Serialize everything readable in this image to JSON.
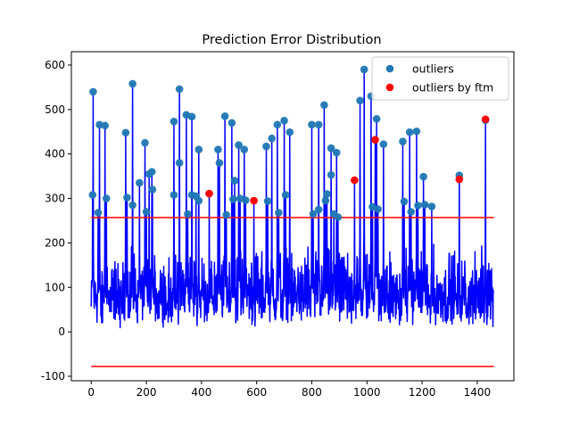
{
  "chart_data": {
    "type": "line",
    "title": "Prediction Error Distribution",
    "xlabel": "",
    "ylabel": "",
    "xlim": [
      -72,
      1533
    ],
    "ylim": [
      -110,
      630
    ],
    "grid": false,
    "xticks": [
      0,
      200,
      400,
      600,
      800,
      1000,
      1200,
      1400
    ],
    "yticks": [
      -100,
      0,
      100,
      200,
      300,
      400,
      500,
      600
    ],
    "legend": {
      "position": "top-right",
      "entries": [
        {
          "label": "outliers",
          "marker": "circle",
          "color": "#1f77b4"
        },
        {
          "label": "outliers by ftm",
          "marker": "circle",
          "color": "#ff0000"
        }
      ]
    },
    "series": [
      {
        "name": "prediction error",
        "kind": "line",
        "color": "#0000ff",
        "n_points": 1460,
        "baseline_range": [
          0,
          190
        ]
      },
      {
        "name": "upper threshold",
        "kind": "hline",
        "color": "#ff0000",
        "y": 257,
        "x_range": [
          0,
          1460
        ]
      },
      {
        "name": "lower threshold",
        "kind": "hline",
        "color": "#ff0000",
        "y": -78,
        "x_range": [
          0,
          1460
        ]
      },
      {
        "name": "outliers",
        "kind": "scatter",
        "color": "#1f77b4",
        "points": [
          [
            7,
            540
          ],
          [
            5,
            308
          ],
          [
            25,
            268
          ],
          [
            30,
            466
          ],
          [
            50,
            464
          ],
          [
            55,
            300
          ],
          [
            125,
            448
          ],
          [
            130,
            302
          ],
          [
            150,
            558
          ],
          [
            150,
            285
          ],
          [
            175,
            335
          ],
          [
            195,
            425
          ],
          [
            200,
            270
          ],
          [
            210,
            355
          ],
          [
            220,
            360
          ],
          [
            222,
            320
          ],
          [
            300,
            473
          ],
          [
            300,
            308
          ],
          [
            320,
            546
          ],
          [
            320,
            380
          ],
          [
            345,
            488
          ],
          [
            350,
            265
          ],
          [
            365,
            484
          ],
          [
            365,
            308
          ],
          [
            380,
            305
          ],
          [
            390,
            410
          ],
          [
            390,
            295
          ],
          [
            460,
            410
          ],
          [
            465,
            380
          ],
          [
            485,
            485
          ],
          [
            490,
            263
          ],
          [
            510,
            470
          ],
          [
            515,
            298
          ],
          [
            520,
            340
          ],
          [
            535,
            420
          ],
          [
            540,
            300
          ],
          [
            555,
            410
          ],
          [
            560,
            296
          ],
          [
            635,
            417
          ],
          [
            640,
            294
          ],
          [
            655,
            435
          ],
          [
            675,
            466
          ],
          [
            680,
            268
          ],
          [
            700,
            475
          ],
          [
            705,
            308
          ],
          [
            720,
            449
          ],
          [
            800,
            466
          ],
          [
            805,
            265
          ],
          [
            825,
            466
          ],
          [
            825,
            275
          ],
          [
            845,
            510
          ],
          [
            850,
            295
          ],
          [
            855,
            310
          ],
          [
            870,
            413
          ],
          [
            870,
            353
          ],
          [
            880,
            265
          ],
          [
            890,
            403
          ],
          [
            895,
            258
          ],
          [
            975,
            520
          ],
          [
            990,
            590
          ],
          [
            1015,
            530
          ],
          [
            1020,
            281
          ],
          [
            1035,
            479
          ],
          [
            1040,
            276
          ],
          [
            1060,
            422
          ],
          [
            1130,
            428
          ],
          [
            1135,
            293
          ],
          [
            1155,
            449
          ],
          [
            1160,
            270
          ],
          [
            1180,
            451
          ],
          [
            1185,
            284
          ],
          [
            1205,
            349
          ],
          [
            1210,
            286
          ],
          [
            1235,
            282
          ],
          [
            1335,
            352
          ],
          [
            1430,
            476
          ]
        ]
      },
      {
        "name": "outliers by ftm",
        "kind": "scatter",
        "color": "#ff0000",
        "points": [
          [
            428,
            311
          ],
          [
            590,
            295
          ],
          [
            955,
            341
          ],
          [
            1030,
            432
          ],
          [
            1335,
            343
          ],
          [
            1430,
            478
          ]
        ]
      }
    ]
  }
}
